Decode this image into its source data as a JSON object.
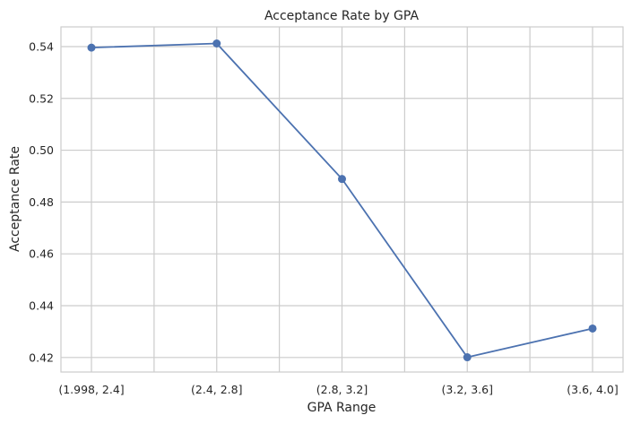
{
  "chart_data": {
    "type": "line",
    "title": "Acceptance Rate by GPA",
    "xlabel": "GPA Range",
    "ylabel": "Acceptance Rate",
    "categories": [
      "(1.998, 2.4]",
      "(2.4, 2.8]",
      "(2.8, 3.2]",
      "(3.2, 3.6]",
      "(3.6, 4.0]"
    ],
    "series": [
      {
        "values": [
          0.5396,
          0.5412,
          0.4889,
          0.4201,
          0.4312
        ]
      }
    ],
    "yticks": [
      "0.42",
      "0.44",
      "0.46",
      "0.48",
      "0.50",
      "0.52",
      "0.54"
    ],
    "ylim": [
      0.4144,
      0.5476
    ],
    "grid": true,
    "line_color": "#4c72b0"
  }
}
